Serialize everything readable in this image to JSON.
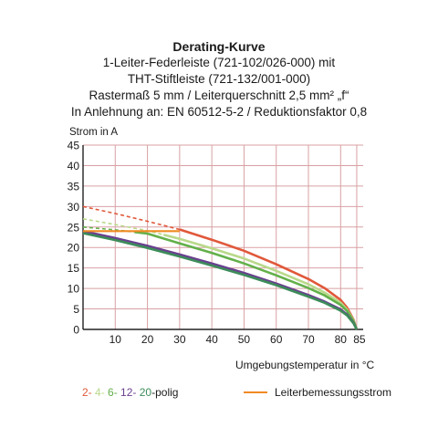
{
  "titles": {
    "main": "Derating-Kurve",
    "line1": "1-Leiter-Federleiste (721-102/026-000) mit",
    "line2": "THT-Stiftleiste (721-132/001-000)",
    "line3": "Rastermaß 5 mm / Leiterquerschnitt 2,5 mm² „f“",
    "line4": "In Anlehnung an: EN 60512-5-2 / Reduktionsfaktor 0,8"
  },
  "legend": {
    "poles": [
      {
        "label": "2-",
        "color": "#e0583a"
      },
      {
        "label": "4-",
        "color": "#b9d98a"
      },
      {
        "label": "6-",
        "color": "#63b04a"
      },
      {
        "label": "12-",
        "color": "#6a3f8f"
      },
      {
        "label": "20",
        "color": "#3d8c5a"
      }
    ],
    "poles_suffix": "-polig",
    "rated_current": "Leiterbemessungsstrom",
    "rated_color": "#f08a22"
  },
  "chart_data": {
    "type": "line",
    "xlabel": "Umgebungstemperatur in °C",
    "ylabel": "Strom in A",
    "xlim": [
      0,
      87
    ],
    "ylim": [
      0,
      45
    ],
    "xticks": [
      10,
      20,
      30,
      40,
      50,
      60,
      70,
      80,
      85
    ],
    "yticks": [
      0,
      5,
      10,
      15,
      20,
      25,
      30,
      35,
      40,
      45
    ],
    "grid": true,
    "series": [
      {
        "color": "#e0583a",
        "dash_until_x": 30,
        "x": [
          0,
          10,
          20,
          30,
          40,
          50,
          60,
          70,
          75,
          80,
          82,
          84,
          85
        ],
        "y": [
          30,
          28.3,
          26.4,
          24.4,
          21.9,
          19.2,
          15.9,
          12.3,
          10.1,
          7.2,
          5.3,
          2.4,
          0
        ]
      },
      {
        "color": "#b9d98a",
        "dash_until_x": 25,
        "x": [
          0,
          10,
          20,
          30,
          40,
          50,
          60,
          70,
          75,
          80,
          82,
          84,
          85
        ],
        "y": [
          27,
          25.6,
          24.1,
          22.1,
          19.8,
          17.3,
          14.3,
          11.0,
          9.0,
          6.5,
          4.8,
          2.2,
          0
        ]
      },
      {
        "color": "#63b04a",
        "dash_until_x": 16,
        "x": [
          0,
          10,
          20,
          30,
          40,
          50,
          60,
          70,
          75,
          80,
          82,
          84,
          85
        ],
        "y": [
          25,
          24.3,
          23.4,
          21.0,
          18.7,
          16.1,
          13.2,
          10.1,
          8.3,
          6.0,
          4.5,
          2.0,
          0
        ]
      },
      {
        "color": "#6a3f8f",
        "x": [
          0,
          10,
          20,
          30,
          40,
          50,
          60,
          70,
          75,
          80,
          82,
          84,
          85
        ],
        "y": [
          24,
          22.3,
          20.4,
          18.3,
          16.1,
          13.8,
          11.2,
          8.4,
          6.8,
          4.9,
          3.6,
          1.6,
          0
        ]
      },
      {
        "color": "#3d8c5a",
        "x": [
          0,
          10,
          20,
          30,
          40,
          50,
          60,
          70,
          75,
          80,
          82,
          84,
          85
        ],
        "y": [
          23.5,
          21.8,
          19.9,
          17.8,
          15.6,
          13.3,
          10.8,
          8.0,
          6.5,
          4.6,
          3.4,
          1.5,
          0
        ]
      },
      {
        "color": "#f08a22",
        "rated": true,
        "x": [
          0,
          10,
          20,
          30
        ],
        "y": [
          24,
          24,
          24,
          24
        ]
      }
    ]
  }
}
